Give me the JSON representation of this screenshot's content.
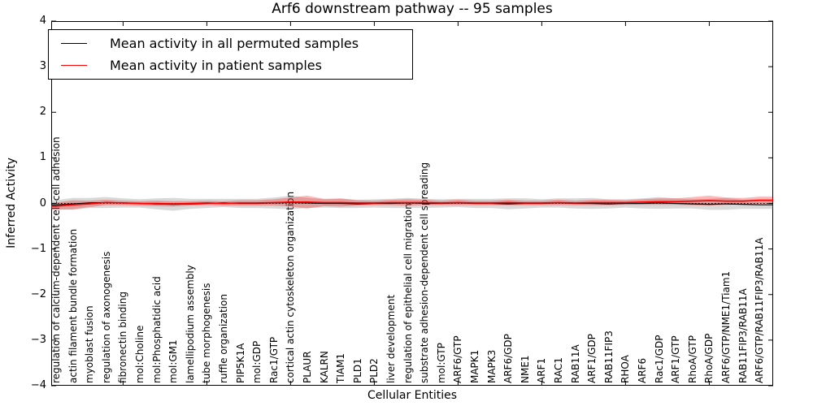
{
  "title": "Arf6 downstream pathway -- 95 samples",
  "axes": {
    "ylabel": "Inferred Activity",
    "xlabel": "Cellular Entities",
    "ytick_labels": [
      "4",
      "3",
      "2",
      "1",
      "0",
      "−1",
      "−2",
      "−3",
      "−4"
    ]
  },
  "legend": {
    "items": [
      {
        "label": "Mean activity in all permuted samples",
        "color": "#000000"
      },
      {
        "label": "Mean activity in patient samples",
        "color": "#ff0000"
      }
    ]
  },
  "chart_data": {
    "type": "line",
    "title": "Arf6 downstream pathway -- 95 samples",
    "xlabel": "Cellular Entities",
    "ylabel": "Inferred Activity",
    "ylim": [
      -4,
      4
    ],
    "yticks": [
      4,
      3,
      2,
      1,
      0,
      -1,
      -2,
      -3,
      -4
    ],
    "zero_reference_line": "dotted",
    "legend_position": "upper left",
    "x_major_tick_indices": [
      4,
      9,
      14,
      19,
      24,
      29,
      34,
      39
    ],
    "categories": [
      "regulation of calcium-dependent cell-cell adhesion",
      "actin filament bundle formation",
      "myoblast fusion",
      "regulation of axonogenesis",
      "fibronectin binding",
      "mol:Choline",
      "mol:Phosphatidic acid",
      "mol:GM1",
      "lamellipodium assembly",
      "tube morphogenesis",
      "ruffle organization",
      "PIP5K1A",
      "mol:GDP",
      "Rac1/GTP",
      "cortical actin cytoskeleton organization",
      "PLAUR",
      "KALRN",
      "TIAM1",
      "PLD1",
      "PLD2",
      "liver development",
      "regulation of epithelial cell migration",
      "substrate adhesion-dependent cell spreading",
      "mol:GTP",
      "ARF6/GTP",
      "MAPK1",
      "MAPK3",
      "ARF6/GDP",
      "NME1",
      "ARF1",
      "RAC1",
      "RAB11A",
      "ARF1/GDP",
      "RAB11FIP3",
      "RHOA",
      "ARF6",
      "Rac1/GDP",
      "ARF1/GTP",
      "RhoA/GTP",
      "RhoA/GDP",
      "ARF6/GTP/NME1/Tiam1",
      "RAB11FIP3/RAB11A",
      "ARF6/GTP/RAB11FIP3/RAB11A"
    ],
    "series": [
      {
        "name": "Mean activity in all permuted samples",
        "color": "#000000",
        "band_color": "rgba(130,130,130,0.30)",
        "values": [
          -0.03,
          -0.01,
          0.01,
          0.02,
          0.01,
          0.0,
          -0.01,
          -0.02,
          -0.01,
          0.0,
          0.01,
          0.0,
          0.0,
          0.01,
          0.02,
          0.01,
          0.0,
          0.0,
          -0.01,
          0.0,
          0.0,
          0.01,
          0.0,
          0.0,
          0.01,
          0.0,
          0.0,
          -0.01,
          0.0,
          0.0,
          0.01,
          0.0,
          0.0,
          -0.01,
          0.0,
          0.0,
          0.01,
          0.0,
          -0.01,
          -0.02,
          -0.01,
          -0.02,
          -0.03
        ],
        "band_halfwidth": [
          0.1,
          0.13,
          0.11,
          0.12,
          0.1,
          0.09,
          0.12,
          0.14,
          0.11,
          0.1,
          0.09,
          0.1,
          0.1,
          0.12,
          0.15,
          0.11,
          0.09,
          0.1,
          0.09,
          0.09,
          0.1,
          0.11,
          0.1,
          0.09,
          0.09,
          0.1,
          0.1,
          0.12,
          0.11,
          0.09,
          0.1,
          0.11,
          0.12,
          0.1,
          0.09,
          0.11,
          0.13,
          0.11,
          0.1,
          0.12,
          0.13,
          0.1,
          0.09
        ]
      },
      {
        "name": "Mean activity in patient samples",
        "color": "#ff0000",
        "band_color": "rgba(255,0,0,0.28)",
        "values": [
          -0.06,
          -0.03,
          -0.01,
          0.02,
          0.01,
          0.0,
          0.0,
          -0.01,
          0.0,
          0.01,
          0.0,
          0.01,
          0.01,
          0.02,
          0.03,
          0.03,
          0.02,
          0.02,
          0.01,
          0.01,
          0.02,
          0.02,
          0.02,
          0.01,
          0.02,
          0.01,
          0.01,
          0.02,
          0.01,
          0.01,
          0.02,
          0.01,
          0.02,
          0.02,
          0.02,
          0.03,
          0.04,
          0.04,
          0.05,
          0.06,
          0.05,
          0.05,
          0.07
        ],
        "band_halfwidth": [
          0.08,
          0.1,
          0.07,
          0.06,
          0.05,
          0.05,
          0.06,
          0.06,
          0.05,
          0.05,
          0.05,
          0.06,
          0.06,
          0.07,
          0.1,
          0.14,
          0.08,
          0.09,
          0.06,
          0.05,
          0.06,
          0.07,
          0.06,
          0.05,
          0.06,
          0.05,
          0.05,
          0.06,
          0.05,
          0.05,
          0.06,
          0.05,
          0.06,
          0.06,
          0.05,
          0.06,
          0.07,
          0.07,
          0.09,
          0.11,
          0.08,
          0.07,
          0.08
        ]
      }
    ]
  }
}
